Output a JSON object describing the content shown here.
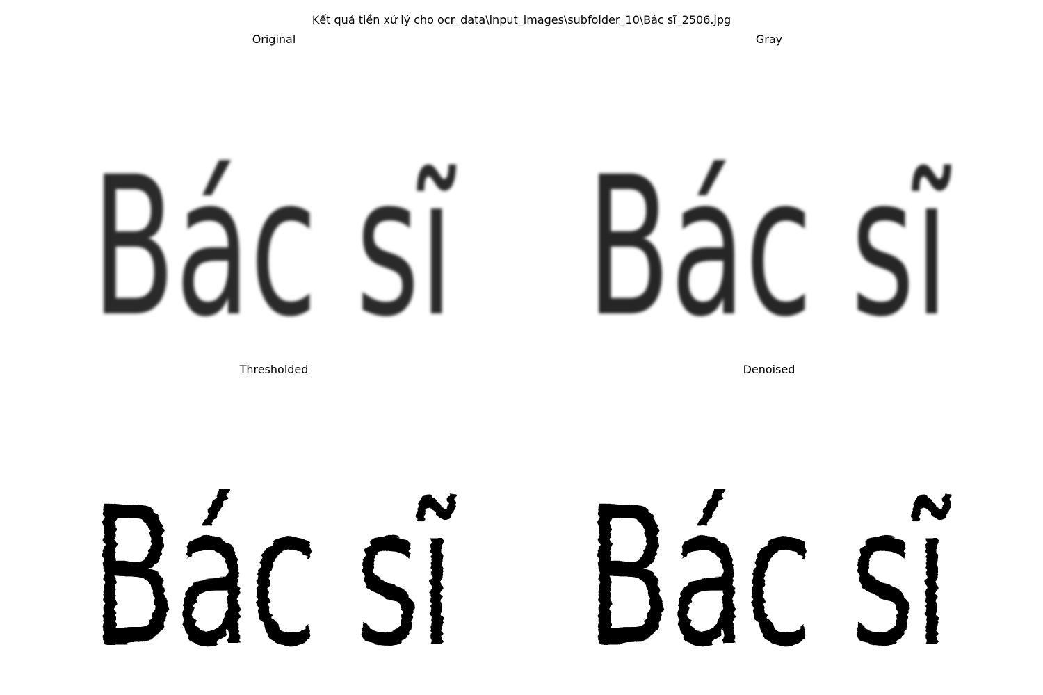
{
  "figure": {
    "suptitle": "Kết quả tiền xử lý cho ocr_data\\input_images\\subfolder_10\\Bác sĩ_2506.jpg"
  },
  "panels": [
    {
      "title": "Original",
      "image_text": "Bác sĩ",
      "style": "blurred-gray",
      "ink_color": "#2b2b2b"
    },
    {
      "title": "Gray",
      "image_text": "Bác sĩ",
      "style": "blurred-gray",
      "ink_color": "#262626"
    },
    {
      "title": "Thresholded",
      "image_text": "Bác sĩ",
      "style": "binary",
      "ink_color": "#000000"
    },
    {
      "title": "Denoised",
      "image_text": "Bác sĩ",
      "style": "binary",
      "ink_color": "#000000"
    }
  ]
}
